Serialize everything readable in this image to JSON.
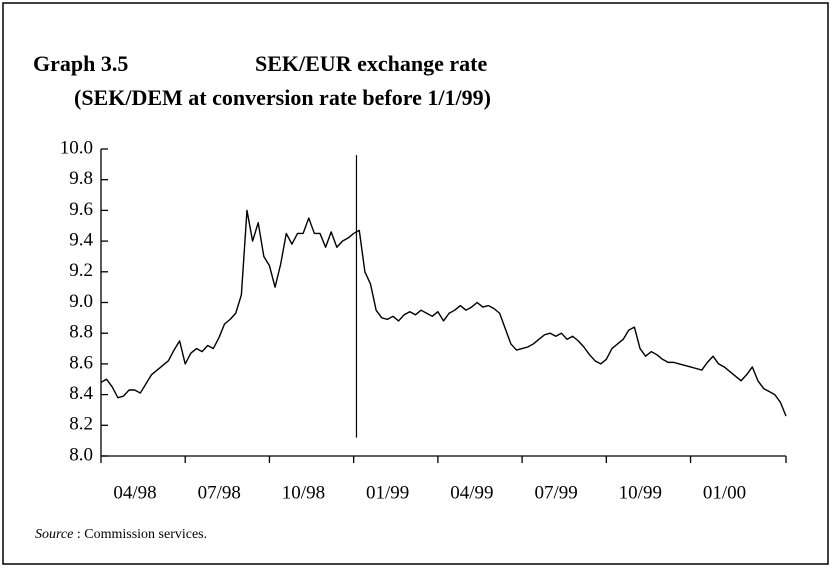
{
  "chart_data": {
    "type": "line",
    "title": "Graph 3.5",
    "subtitle": "SEK/EUR exchange rate",
    "subtitle2": "(SEK/DEM at conversion rate before 1/1/99)",
    "source_label": "Source",
    "source_text": " : Commission services.",
    "color": "#000000",
    "grid": false,
    "x": [
      0,
      0.2,
      0.4,
      0.6,
      0.8,
      1,
      1.2,
      1.4,
      1.6,
      1.8,
      2,
      2.2,
      2.4,
      2.6,
      2.8,
      3,
      3.2,
      3.4,
      3.6,
      3.8,
      4,
      4.2,
      4.4,
      4.6,
      4.8,
      5,
      5.2,
      5.4,
      5.6,
      5.8,
      6,
      6.2,
      6.4,
      6.6,
      6.8,
      7,
      7.2,
      7.4,
      7.6,
      7.8,
      8,
      8.2,
      8.4,
      8.6,
      8.8,
      9,
      9.2,
      9.4,
      9.6,
      9.8,
      10,
      10.2,
      10.4,
      10.6,
      10.8,
      11,
      11.2,
      11.4,
      11.6,
      11.8,
      12,
      12.2,
      12.4,
      12.6,
      12.8,
      13,
      13.2,
      13.4,
      13.6,
      13.8,
      14,
      14.2,
      14.4,
      14.6,
      14.8,
      15,
      15.2,
      15.4,
      15.6,
      15.8,
      16,
      16.2,
      16.4,
      16.6,
      16.8,
      17,
      17.2,
      17.4,
      17.6,
      17.8,
      18,
      18.2,
      18.4,
      18.6,
      18.8,
      19,
      19.2,
      19.4,
      19.6,
      19.8,
      20,
      20.2,
      20.4,
      20.6,
      20.8,
      21,
      21.2,
      21.4,
      21.6,
      21.8,
      22,
      22.2,
      22.4,
      22.6,
      22.8,
      23,
      23.2,
      23.4,
      23.6,
      23.8,
      24,
      24.2,
      24.4
    ],
    "values": [
      8.48,
      8.5,
      8.45,
      8.38,
      8.39,
      8.43,
      8.43,
      8.41,
      8.47,
      8.53,
      8.56,
      8.59,
      8.62,
      8.69,
      8.75,
      8.6,
      8.67,
      8.7,
      8.68,
      8.72,
      8.7,
      8.77,
      8.86,
      8.89,
      8.93,
      9.05,
      9.6,
      9.4,
      9.52,
      9.3,
      9.24,
      9.1,
      9.25,
      9.45,
      9.38,
      9.45,
      9.45,
      9.55,
      9.45,
      9.45,
      9.36,
      9.46,
      9.36,
      9.4,
      9.42,
      9.45,
      9.47,
      9.2,
      9.12,
      8.95,
      8.9,
      8.89,
      8.91,
      8.88,
      8.92,
      8.94,
      8.92,
      8.95,
      8.93,
      8.91,
      8.94,
      8.88,
      8.93,
      8.95,
      8.98,
      8.95,
      8.97,
      9.0,
      8.97,
      8.98,
      8.96,
      8.93,
      8.83,
      8.73,
      8.69,
      8.7,
      8.71,
      8.73,
      8.76,
      8.79,
      8.8,
      8.78,
      8.8,
      8.76,
      8.78,
      8.75,
      8.71,
      8.66,
      8.62,
      8.6,
      8.63,
      8.7,
      8.73,
      8.76,
      8.82,
      8.84,
      8.7,
      8.65,
      8.68,
      8.66,
      8.63,
      8.61,
      8.61,
      8.6,
      8.59,
      8.58,
      8.57,
      8.56,
      8.61,
      8.65,
      8.6,
      8.58,
      8.55,
      8.52,
      8.49,
      8.53,
      8.58,
      8.49,
      8.44,
      8.42,
      8.4,
      8.35,
      8.26
    ],
    "xlim": [
      0,
      24.4
    ],
    "ylim": [
      8,
      10
    ],
    "yticks": [
      {
        "value": 8,
        "label": "8.0"
      },
      8.2,
      8.4,
      8.6,
      8.8,
      {
        "value": 9,
        "label": "9.0"
      },
      9.2,
      9.4,
      9.6,
      9.8,
      {
        "value": 10,
        "label": "10.0"
      }
    ],
    "xticks": [
      {
        "value": 0,
        "label": "04/98"
      },
      {
        "value": 3,
        "label": "07/98"
      },
      {
        "value": 6,
        "label": "10/98"
      },
      {
        "value": 9,
        "label": "01/99"
      },
      {
        "value": 12,
        "label": "04/99"
      },
      {
        "value": 15,
        "label": "07/99"
      },
      {
        "value": 18,
        "label": "10/99"
      },
      {
        "value": 21,
        "label": "01/00"
      }
    ],
    "vline": {
      "x": 9.1,
      "y": [
        8.12,
        9.96
      ]
    }
  }
}
